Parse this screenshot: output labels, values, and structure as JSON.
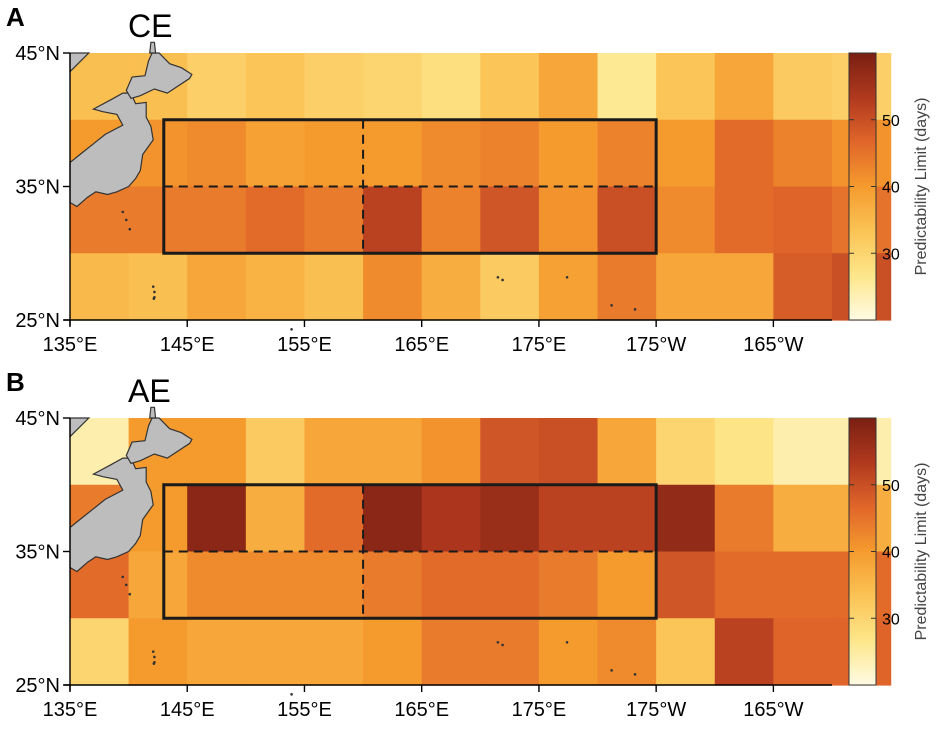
{
  "panels": [
    {
      "letter": "A",
      "subtitle": "CE",
      "grid_values": [
        [
          34,
          34,
          31,
          33,
          31,
          30,
          28,
          33,
          38,
          26,
          33,
          38,
          32,
          31
        ],
        [
          40,
          41,
          42,
          39,
          40,
          40,
          42,
          43,
          40,
          43,
          40,
          46,
          43,
          41
        ],
        [
          44,
          44,
          44,
          46,
          44,
          52,
          43,
          49,
          41,
          50,
          42,
          46,
          47,
          45
        ],
        [
          35,
          34,
          38,
          36,
          34,
          42,
          37,
          32,
          39,
          44,
          38,
          38,
          48,
          50
        ]
      ]
    },
    {
      "letter": "B",
      "subtitle": "AE",
      "grid_values": [
        [
          24,
          40,
          40,
          32,
          38,
          38,
          41,
          49,
          50,
          38,
          30,
          27,
          24,
          24
        ],
        [
          44,
          40,
          58,
          37,
          46,
          58,
          54,
          56,
          52,
          52,
          57,
          44,
          37,
          37
        ],
        [
          46,
          38,
          42,
          42,
          42,
          44,
          46,
          46,
          44,
          40,
          49,
          46,
          46,
          46
        ],
        [
          30,
          40,
          38,
          38,
          38,
          40,
          44,
          44,
          40,
          42,
          33,
          52,
          47,
          47
        ]
      ]
    }
  ],
  "chart_data": {
    "type": "heatmap",
    "lon_range": [
      135,
      200
    ],
    "lat_range": [
      25,
      45
    ],
    "cell_size_deg": 5,
    "lon_edges": [
      135,
      140,
      145,
      150,
      155,
      160,
      165,
      170,
      175,
      180,
      185,
      190,
      195,
      200
    ],
    "lat_edges": [
      45,
      40,
      35,
      30,
      25
    ],
    "x_tick_labels": [
      "135°E",
      "145°E",
      "155°E",
      "165°E",
      "175°E",
      "175°W",
      "165°W"
    ],
    "y_tick_labels": [
      "45°N",
      "35°N",
      "25°N"
    ],
    "colorbar": {
      "label": "Predictability Limit (days)",
      "range": [
        20,
        60
      ],
      "ticks": [
        "30",
        "40",
        "50"
      ],
      "tick_values": [
        30,
        40,
        50
      ]
    },
    "region_box": {
      "lon": [
        143,
        185
      ],
      "lat": [
        30,
        40
      ]
    },
    "dashed_lines": {
      "lon": 160,
      "lat": 35
    }
  },
  "colors": {
    "land": "#bdbdbd",
    "coast": "#333333",
    "box": "#1a1a1a",
    "colormap": [
      "#fffbe3",
      "#fde68a",
      "#fbc355",
      "#f59b2e",
      "#e0662a",
      "#b0391e",
      "#7a1f12"
    ]
  }
}
